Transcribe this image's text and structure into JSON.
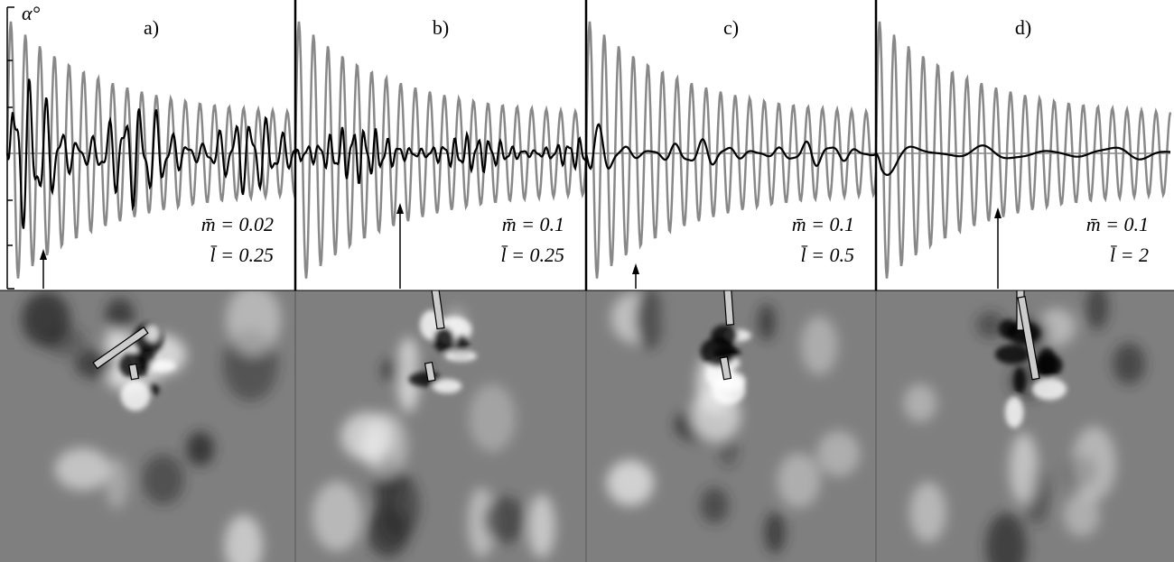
{
  "y_label": "α°",
  "panels": [
    {
      "label": "a)",
      "mass": "m̄ = 0.02",
      "length": "l̄ = 0.25"
    },
    {
      "label": "b)",
      "mass": "m̄ = 0.1",
      "length": "l̄ = 0.25"
    },
    {
      "label": "c)",
      "mass": "m̄ = 0.1",
      "length": "l̄ = 0.5"
    },
    {
      "label": "d)",
      "mass": "m̄ = 0.1",
      "length": "l̄ = 2"
    }
  ]
}
